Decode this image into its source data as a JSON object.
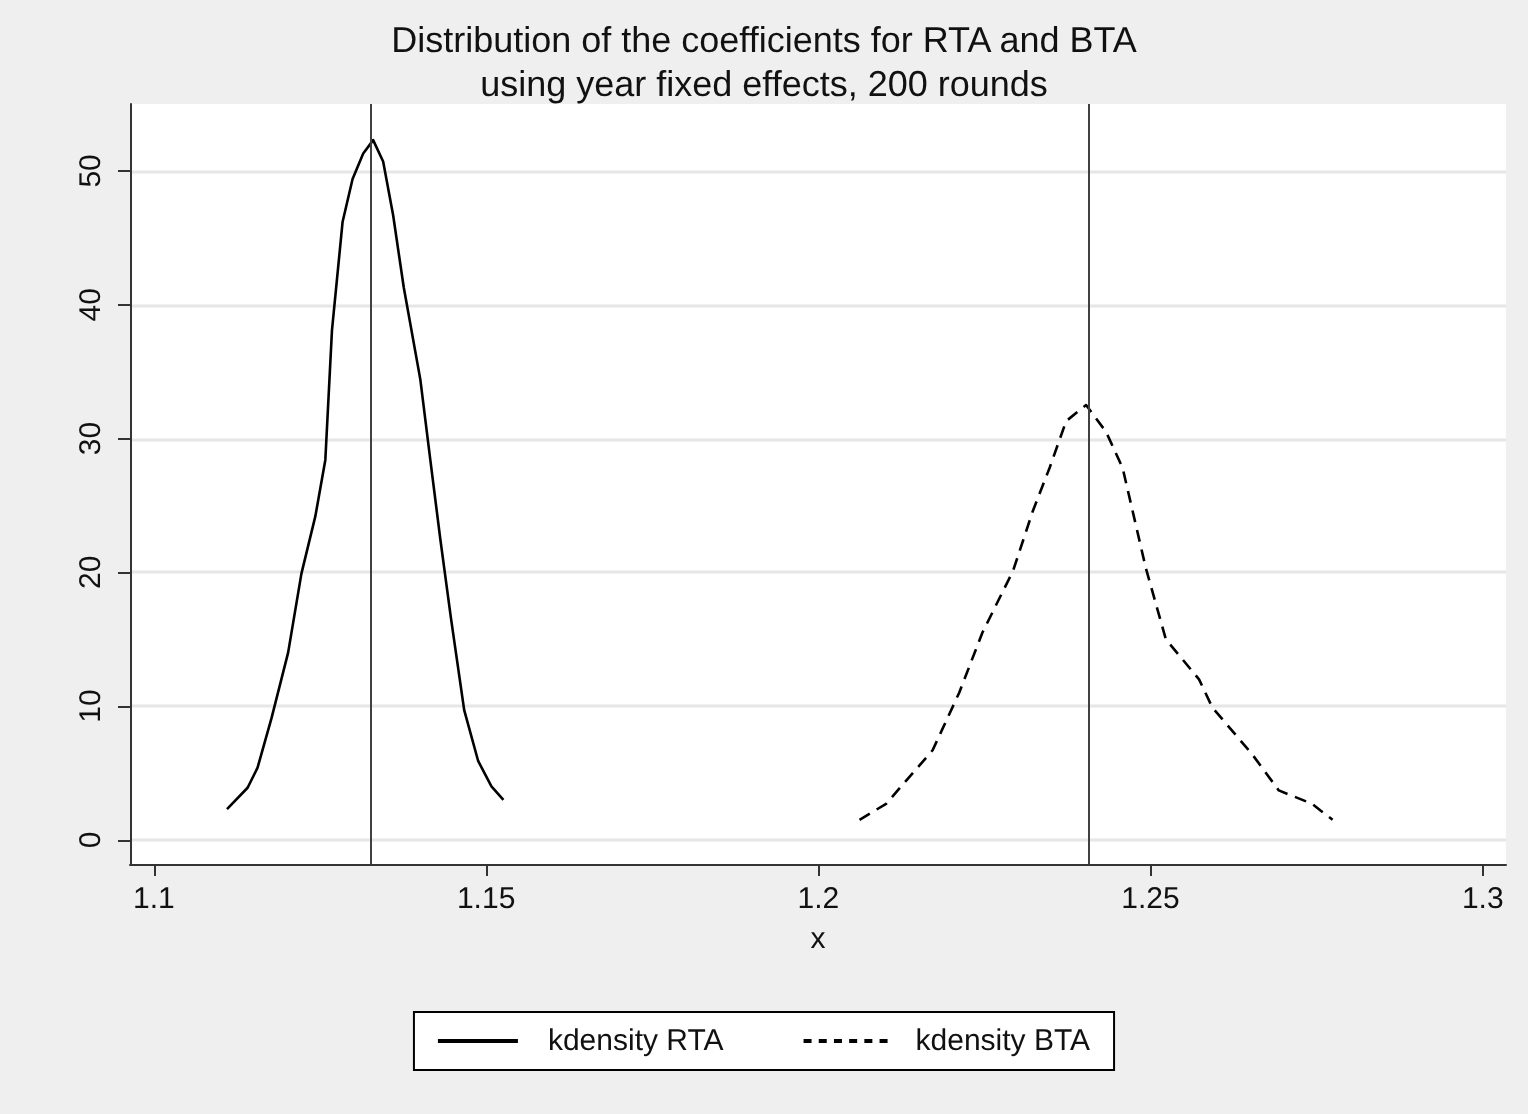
{
  "chart_data": {
    "type": "line",
    "title": "Distribution of the coefficients for RTA and BTA\nusing year fixed effects, 200 rounds",
    "xlabel": "x",
    "xlim": [
      1.0964,
      1.3035
    ],
    "xticks": [
      1.1,
      1.15,
      1.2,
      1.25,
      1.3
    ],
    "ylim": [
      -1.8,
      55
    ],
    "yticks": [
      0,
      10,
      20,
      30,
      40,
      50
    ],
    "grid": "y",
    "legend": "bottom",
    "marker": "none",
    "ref_lines": [
      {
        "axis": "x",
        "value": 1.1325,
        "color": "#404040"
      },
      {
        "axis": "x",
        "value": 1.2406,
        "color": "#404040"
      }
    ],
    "series": [
      {
        "name": "kdensity RTA",
        "color": "#000000",
        "line_style": "solid",
        "x": [
          1.111,
          1.1141,
          1.1156,
          1.1177,
          1.1202,
          1.1222,
          1.1243,
          1.1258,
          1.1268,
          1.1284,
          1.1299,
          1.1315,
          1.133,
          1.1345,
          1.136,
          1.1376,
          1.1401,
          1.1416,
          1.1431,
          1.1447,
          1.1467,
          1.1488,
          1.1508,
          1.1526
        ],
        "values": [
          2.3,
          3.9,
          5.4,
          9.1,
          14.0,
          19.9,
          24.2,
          28.4,
          38.1,
          46.2,
          49.4,
          51.3,
          52.3,
          50.7,
          46.7,
          41.3,
          34.4,
          28.4,
          22.5,
          16.6,
          9.7,
          5.9,
          4.0,
          3.0
        ]
      },
      {
        "name": "kdensity BTA",
        "color": "#000000",
        "line_style": "dashed",
        "x": [
          1.2062,
          1.2102,
          1.2172,
          1.2212,
          1.2247,
          1.2293,
          1.2323,
          1.2348,
          1.2373,
          1.2403,
          1.2433,
          1.2458,
          1.2493,
          1.2523,
          1.2573,
          1.2593,
          1.2653,
          1.2693,
          1.2743,
          1.2774
        ],
        "values": [
          1.5,
          2.7,
          6.7,
          11.0,
          15.5,
          20.1,
          24.6,
          27.8,
          31.3,
          32.5,
          30.5,
          27.8,
          20.3,
          15.0,
          12.0,
          9.9,
          6.4,
          3.7,
          2.7,
          1.5
        ]
      }
    ]
  }
}
